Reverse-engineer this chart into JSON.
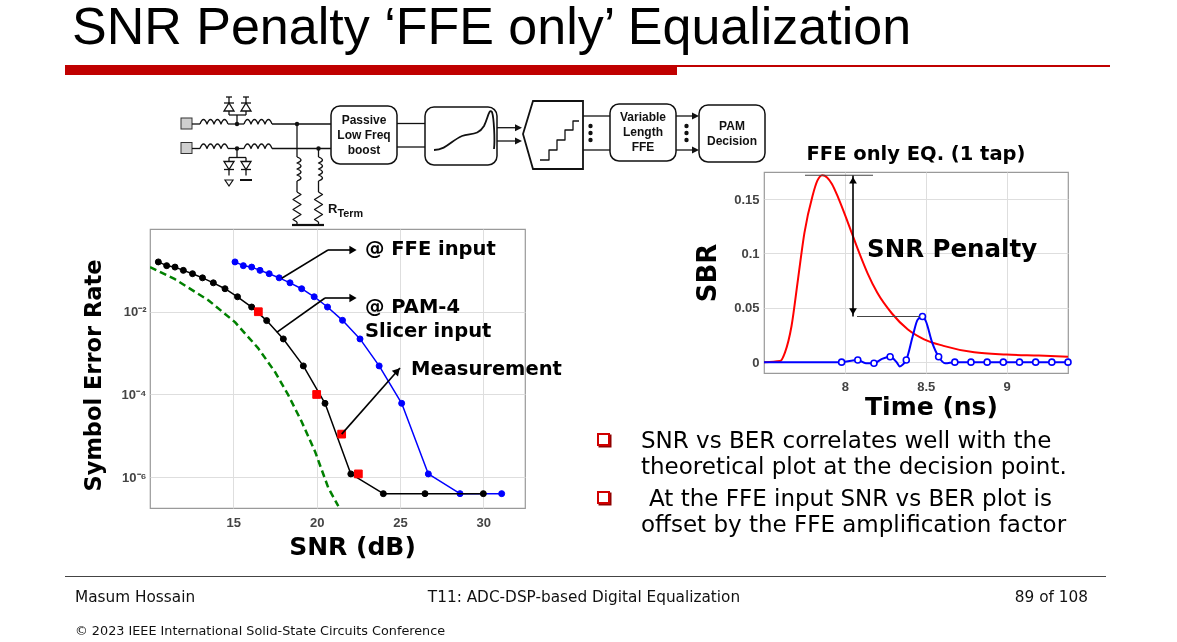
{
  "chart_data": [
    {
      "type": "other",
      "title": "SNR Penalty ‘FFE only’ Equalization",
      "annotations": [
        "Passive Low Freq boost",
        "Variable Length FFE",
        "PAM Decision",
        "R$_{Term}$"
      ]
    },
    {
      "type": "line",
      "xlabel": "SNR (dB)",
      "ylabel": "Symbol Error Rate",
      "log": "y",
      "xlim": [
        10,
        32.5
      ],
      "xticks": [
        15,
        20,
        25,
        30
      ],
      "ylim": [
        1.8e-07,
        1
      ],
      "yticks": [
        {
          "value": 0.01,
          "label": "10⁻²"
        },
        {
          "value": 0.0001,
          "label": "10⁻⁴"
        },
        {
          "value": 1e-06,
          "label": "10⁻⁶"
        }
      ],
      "grid": true,
      "series": [
        {
          "color": "#0000ff",
          "marker": "circle",
          "x": [
            15.1,
            15.6,
            16.1,
            16.6,
            17.15,
            17.75,
            18.4,
            19.1,
            19.85,
            20.65,
            21.55,
            22.6,
            23.75,
            25.1,
            26.7,
            28.6,
            31.1
          ],
          "values": [
            0.16,
            0.13,
            0.12,
            0.1,
            0.083,
            0.066,
            0.05,
            0.036,
            0.023,
            0.013,
            0.0062,
            0.0022,
            0.00049,
            6.1e-05,
            1.2e-06,
            4e-07,
            4e-07
          ]
        },
        {
          "color": "#000000",
          "marker": "circle",
          "x": [
            10.5,
            11,
            11.5,
            12,
            12.55,
            13.15,
            13.8,
            14.5,
            15.25,
            16.1,
            17,
            18,
            19.2,
            20.5,
            22.05,
            24,
            26.5,
            30
          ],
          "values": [
            0.16,
            0.13,
            0.12,
            0.1,
            0.083,
            0.066,
            0.05,
            0.036,
            0.023,
            0.013,
            0.0061,
            0.0022,
            0.00049,
            6.1e-05,
            1.2e-06,
            4e-07,
            4e-07,
            4e-07
          ]
        },
        {
          "color": "#008000",
          "marker": "none",
          "line_style": "dashed",
          "x": [
            10,
            11.5,
            13.5,
            15.1,
            16.5,
            17.5,
            18.3,
            19.1,
            19.9,
            20.7,
            21.3
          ],
          "values": [
            0.12,
            0.061,
            0.019,
            0.0056,
            0.0013,
            0.00035,
            9.6e-05,
            2.2e-05,
            4.2e-06,
            5.5e-07,
            2e-07
          ]
        },
        {
          "type": "scatter",
          "color": "#ff0000",
          "marker": "square",
          "x": [
            16.5,
            20,
            21.5,
            22.5
          ],
          "values": [
            0.01,
            0.0001,
            1.1e-05,
            1.2e-06
          ]
        }
      ],
      "annotations": [
        "@ FFE input",
        "@ PAM-4\nSlicer input",
        {
          "text": "Measurement",
          "x": 21.5,
          "y": 1.1e-05
        }
      ]
    },
    {
      "type": "line",
      "title": "FFE only EQ. (1 tap)",
      "xlabel": "Time (ns)",
      "ylabel": "SBR",
      "xlim": [
        7.5,
        9.38
      ],
      "xticks": [
        8,
        8.5,
        9
      ],
      "ylim": [
        -0.01,
        0.175
      ],
      "yticks": [
        0,
        0.05,
        0.1,
        0.15
      ],
      "grid": true,
      "series": [
        {
          "color": "#ff0000",
          "marker": "none",
          "x": [
            7.5,
            7.6,
            7.63,
            7.67,
            7.71,
            7.75,
            7.8,
            7.83,
            7.86,
            7.89,
            7.92,
            7.96,
            8.02,
            8.08,
            8.14,
            8.2,
            8.29,
            8.39,
            8.49,
            8.61,
            8.8,
            9.0,
            9.2,
            9.38
          ],
          "values": [
            0,
            0.001,
            0.009,
            0.033,
            0.076,
            0.119,
            0.153,
            0.167,
            0.172,
            0.17,
            0.164,
            0.151,
            0.128,
            0.104,
            0.082,
            0.064,
            0.045,
            0.03,
            0.021,
            0.015,
            0.009,
            0.007,
            0.006,
            0.005
          ]
        },
        {
          "color": "#0000ff",
          "marker": "none",
          "x": [
            7.5,
            7.98,
            8.08,
            8.13,
            8.18,
            8.23,
            8.28,
            8.32,
            8.34,
            8.36,
            8.38,
            8.42,
            8.45,
            8.48,
            8.5,
            8.54,
            8.58,
            8.62,
            8.68,
            9.38
          ],
          "values": [
            0,
            0,
            0.002,
            -0.001,
            -0.001,
            0.003,
            0.005,
            0,
            -0.004,
            -0.002,
            0.002,
            0.024,
            0.039,
            0.042,
            0.038,
            0.018,
            0.005,
            -0.001,
            0,
            0
          ]
        },
        {
          "type": "scatter",
          "color": "#0000ff",
          "marker": "circle",
          "x": [
            7.98,
            8.08,
            8.18,
            8.28,
            8.38,
            8.48,
            8.58,
            8.68,
            8.78,
            8.88,
            8.98,
            9.08,
            9.18,
            9.28,
            9.38
          ],
          "values": [
            0,
            0.002,
            -0.001,
            0.005,
            0.002,
            0.042,
            0.005,
            0,
            0,
            0,
            0,
            0,
            0,
            0,
            0
          ]
        }
      ],
      "annotations": [
        "SNR Penalty"
      ]
    },
    {
      "type": "other",
      "annotations": [
        "SNR vs BER correlates well with the theoretical plot at the decision point.",
        "At the FFE input SNR vs BER plot is offset by the FFE amplification factor",
        "Masum Hossain",
        "T11: ADC-DSP-based Digital Equalization",
        "89 of 108",
        "© 2023 IEEE International Solid-State Circuits Conference"
      ]
    }
  ]
}
